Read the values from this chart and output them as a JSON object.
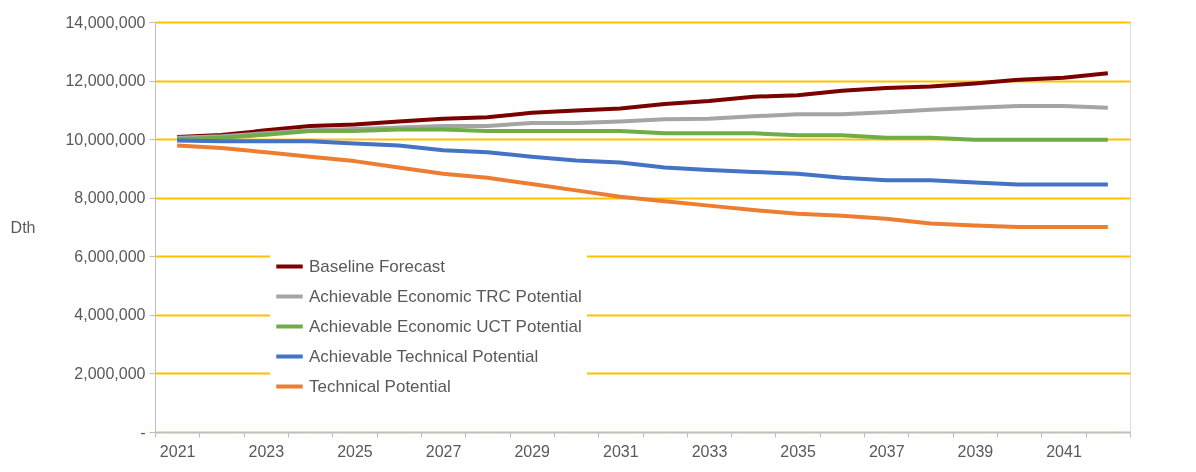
{
  "chart_data": {
    "type": "line",
    "ylabel": "Dth",
    "categories": [
      "2021",
      null,
      "2023",
      null,
      "2025",
      null,
      "2027",
      null,
      "2029",
      null,
      "2031",
      null,
      "2033",
      null,
      "2035",
      null,
      "2037",
      null,
      "2039",
      null,
      "2041",
      null
    ],
    "series": [
      {
        "name": "Baseline Forecast",
        "color": "#7b0000",
        "values": [
          10070000,
          10140000,
          10300000,
          10450000,
          10500000,
          10600000,
          10700000,
          10750000,
          10900000,
          10980000,
          11050000,
          11200000,
          11300000,
          11450000,
          11500000,
          11650000,
          11750000,
          11800000,
          11900000,
          12030000,
          12100000,
          12250000
        ]
      },
      {
        "name": "Achievable Economic TRC Potential",
        "color": "#a5a5a5",
        "values": [
          10050000,
          10100000,
          10200000,
          10300000,
          10350000,
          10400000,
          10450000,
          10450000,
          10550000,
          10550000,
          10600000,
          10680000,
          10700000,
          10780000,
          10850000,
          10850000,
          10920000,
          11000000,
          11070000,
          11130000,
          11130000,
          11070000
        ]
      },
      {
        "name": "Achievable Economic UCT Potential",
        "color": "#70ad47",
        "values": [
          10000000,
          10050000,
          10150000,
          10280000,
          10280000,
          10330000,
          10330000,
          10280000,
          10280000,
          10280000,
          10280000,
          10200000,
          10200000,
          10200000,
          10130000,
          10130000,
          10050000,
          10050000,
          9980000,
          9980000,
          9980000,
          9980000
        ]
      },
      {
        "name": "Achievable Technical Potential",
        "color": "#4472c4",
        "values": [
          9950000,
          9930000,
          9930000,
          9930000,
          9850000,
          9780000,
          9620000,
          9550000,
          9400000,
          9270000,
          9200000,
          9030000,
          8950000,
          8880000,
          8820000,
          8680000,
          8600000,
          8600000,
          8520000,
          8450000,
          8450000,
          8450000
        ]
      },
      {
        "name": "Technical Potential",
        "color": "#ed7d31",
        "values": [
          9780000,
          9700000,
          9550000,
          9400000,
          9250000,
          9030000,
          8820000,
          8680000,
          8470000,
          8250000,
          8030000,
          7880000,
          7730000,
          7580000,
          7450000,
          7380000,
          7280000,
          7120000,
          7050000,
          7000000,
          7000000,
          7000000
        ]
      }
    ],
    "ylim": [
      0,
      14000000
    ],
    "yticks": [
      {
        "value": 0,
        "label": "-"
      },
      {
        "value": 2000000,
        "label": "2,000,000"
      },
      {
        "value": 4000000,
        "label": "4,000,000"
      },
      {
        "value": 6000000,
        "label": "6,000,000"
      },
      {
        "value": 8000000,
        "label": "8,000,000"
      },
      {
        "value": 10000000,
        "label": "10,000,000"
      },
      {
        "value": 12000000,
        "label": "12,000,000"
      },
      {
        "value": 14000000,
        "label": "14,000,000"
      }
    ],
    "grid": "y",
    "legend": "bottom",
    "line_style": "solid",
    "marker": "none"
  }
}
